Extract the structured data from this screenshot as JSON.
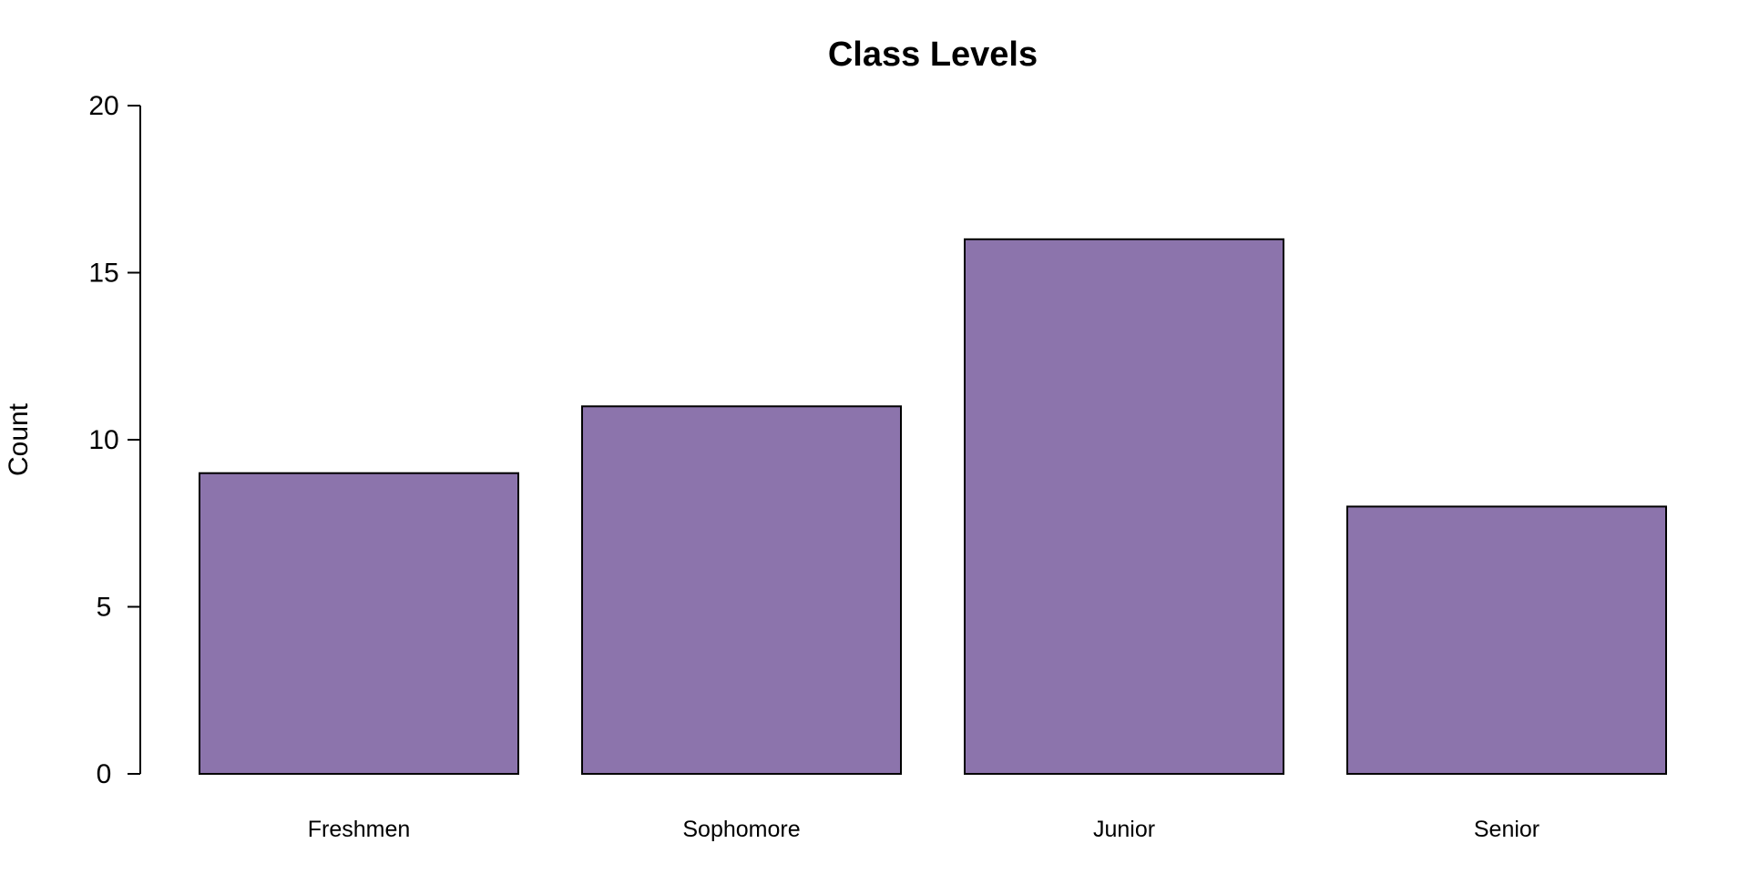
{
  "chart_data": {
    "type": "bar",
    "title": "Class Levels",
    "xlabel": "",
    "ylabel": "Count",
    "categories": [
      "Freshmen",
      "Sophomore",
      "Junior",
      "Senior"
    ],
    "values": [
      9,
      11,
      16,
      8
    ],
    "ylim": [
      0,
      20
    ],
    "yticks": [
      0,
      5,
      10,
      15,
      20
    ],
    "grid": false,
    "legend": "none",
    "bar_color": "#8C74AC",
    "edge_color": "#000000"
  }
}
